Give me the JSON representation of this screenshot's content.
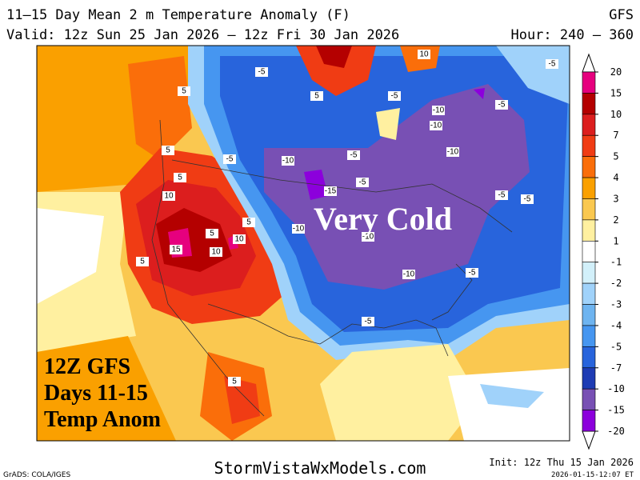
{
  "header": {
    "title": "11–15 Day Mean 2 m Temperature Anomaly (F)",
    "model": "GFS",
    "valid": "Valid: 12z Sun 25 Jan 2026 – 12z Fri 30 Jan 2026",
    "hour": "Hour: 240 – 360"
  },
  "map": {
    "annotation": "Very Cold",
    "caption": [
      "12Z GFS",
      "Days 11-15",
      "Temp Anom"
    ],
    "contour_labels": [
      5,
      5,
      10,
      -5,
      -10,
      -10,
      -5,
      -10,
      -5,
      -5,
      -10,
      -5,
      -15,
      -5,
      -5,
      -5,
      5,
      10,
      10,
      5,
      15,
      10,
      5,
      5,
      -10,
      -10,
      -10,
      -5,
      -5,
      5,
      5,
      -5
    ]
  },
  "colorbar": {
    "levels": [
      20,
      15,
      10,
      7,
      5,
      4,
      3,
      2,
      1,
      -1,
      -2,
      -3,
      -4,
      -5,
      -7,
      -10,
      -15,
      -20
    ],
    "colors": [
      "#e6007e",
      "#b40000",
      "#dc1e1e",
      "#f03c14",
      "#fa6e0a",
      "#faa000",
      "#fac850",
      "#fff0a0",
      "#ffffff",
      "#d2f0fa",
      "#a0d2fa",
      "#6eb4f0",
      "#4696f0",
      "#2864dc",
      "#1e3cb4",
      "#7850b4",
      "#8c00dc"
    ]
  },
  "footer": {
    "credit": "GrADS: COLA/IGES",
    "site": "StormVistaWxModels.com",
    "init": "Init: 12z Thu 15 Jan 2026",
    "stamp": "2026-01-15-12:07 ET"
  }
}
